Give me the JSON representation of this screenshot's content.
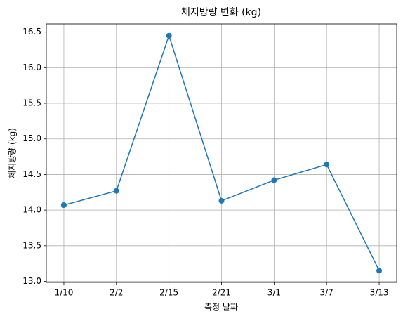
{
  "chart_data": {
    "type": "line",
    "title": "체지방량 변화 (kg)",
    "x_label": "측정 날짜",
    "y_label": "체지방량 (kg)",
    "categories": [
      "1/10",
      "2/2",
      "2/15",
      "2/21",
      "3/1",
      "3/7",
      "3/13"
    ],
    "series": [
      {
        "name": "체지방량",
        "color": "#1f77b4",
        "values": [
          14.07,
          14.27,
          16.45,
          14.13,
          14.42,
          14.64,
          13.15
        ]
      }
    ],
    "ylim": [
      12.985,
      16.615
    ],
    "yticks": [
      {
        "value": 13.0,
        "label": "13.0"
      },
      13.5,
      {
        "value": 14.0,
        "label": "14.0"
      },
      14.5,
      {
        "value": 15.0,
        "label": "15.0"
      },
      15.5,
      {
        "value": 16.0,
        "label": "16.0"
      },
      16.5
    ],
    "grid": true
  }
}
